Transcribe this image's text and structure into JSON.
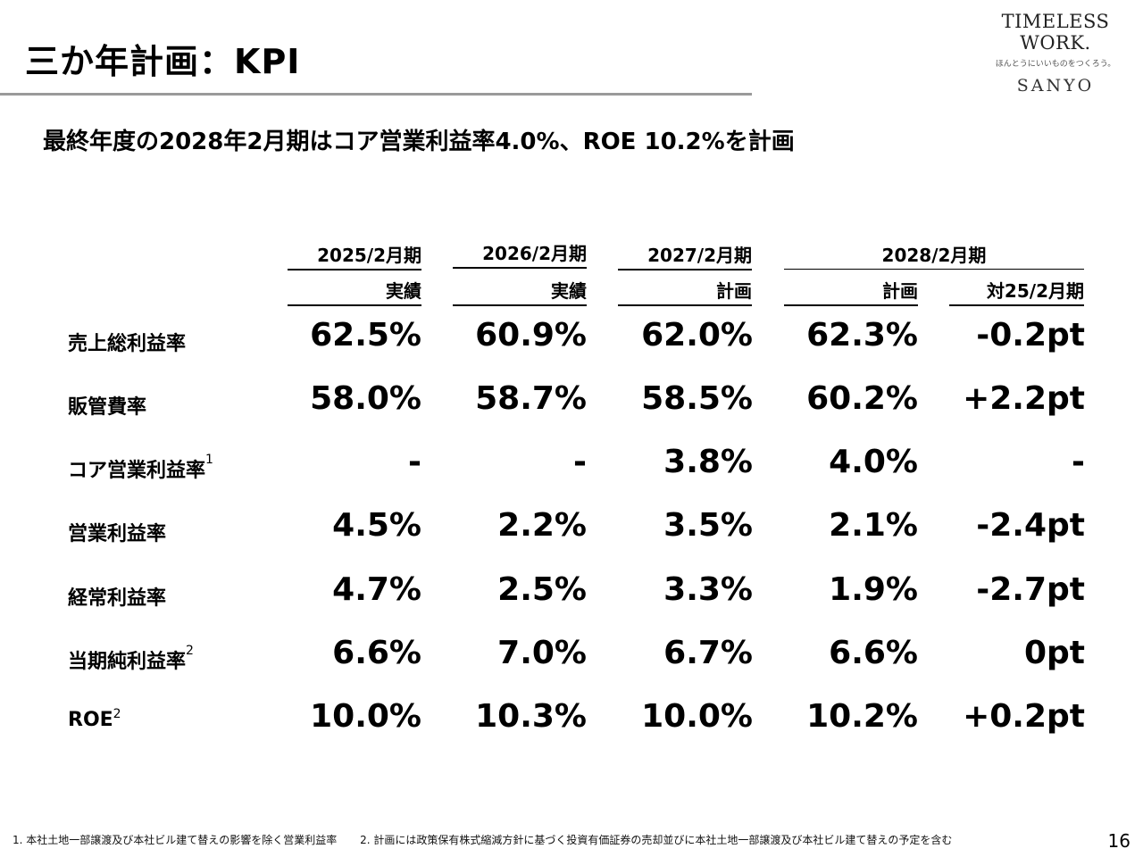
{
  "title": "三か年計画：KPI",
  "logo": {
    "line1": "TIMELESS WORK.",
    "line2": "ほんとうにいいものをつくろう。",
    "line3": "SANYO"
  },
  "subtitle": "最終年度の2028年2月期はコア営業利益率4.0%、ROE 10.2%を計画",
  "headers": {
    "y2025": "2025/2月期",
    "y2026": "2026/2月期",
    "y2027": "2027/2月期",
    "y2028": "2028/2月期",
    "sub2025": "実績",
    "sub2026": "実績",
    "sub2027": "計画",
    "sub2028a": "計画",
    "sub2028b": "対25/2月期"
  },
  "rows": [
    {
      "label": "売上総利益率",
      "sup": "",
      "values": [
        "62.5%",
        "60.9%",
        "62.0%",
        "62.3%",
        "-0.2pt"
      ]
    },
    {
      "label": "販管費率",
      "sup": "",
      "values": [
        "58.0%",
        "58.7%",
        "58.5%",
        "60.2%",
        "+2.2pt"
      ]
    },
    {
      "label": "コア営業利益率",
      "sup": "1",
      "values": [
        "-",
        "-",
        "3.8%",
        "4.0%",
        "-"
      ]
    },
    {
      "label": "営業利益率",
      "sup": "",
      "values": [
        "4.5%",
        "2.2%",
        "3.5%",
        "2.1%",
        "-2.4pt"
      ]
    },
    {
      "label": "経常利益率",
      "sup": "",
      "values": [
        "4.7%",
        "2.5%",
        "3.3%",
        "1.9%",
        "-2.7pt"
      ]
    },
    {
      "label": "当期純利益率",
      "sup": "2",
      "values": [
        "6.6%",
        "7.0%",
        "6.7%",
        "6.6%",
        "0pt"
      ]
    },
    {
      "label": "ROE",
      "sup": "2",
      "values": [
        "10.0%",
        "10.3%",
        "10.0%",
        "10.2%",
        "+0.2pt"
      ]
    }
  ],
  "footnotes": [
    "1. 本社土地一部譲渡及び本社ビル建て替えの影響を除く営業利益率",
    "2. 計画には政策保有株式縮減方針に基づく投資有価証券の売却並びに本社土地一部譲渡及び本社ビル建て替えの予定を含む"
  ],
  "page_number": "16"
}
